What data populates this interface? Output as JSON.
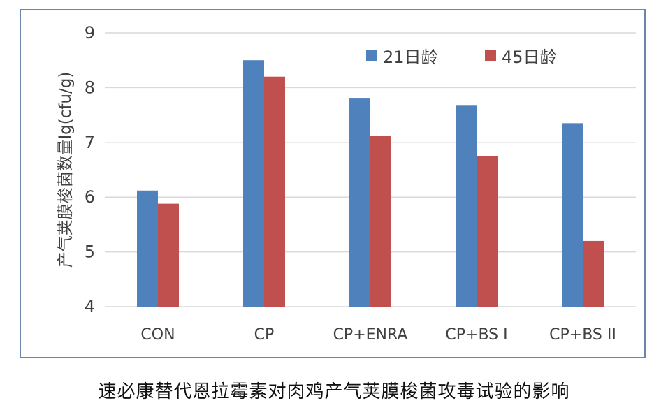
{
  "caption": "速必康替代恩拉霉素对肉鸡产气荚膜梭菌攻毒试验的影响",
  "chart_data": {
    "type": "bar",
    "title": "",
    "xlabel": "",
    "ylabel": "产气荚膜梭菌数量lg(cfu/g)",
    "categories": [
      "CON",
      "CP",
      "CP+ENRA",
      "CP+BS I",
      "CP+BS II"
    ],
    "series": [
      {
        "name": "21日龄",
        "color": "#4f81bd",
        "values": [
          6.12,
          8.5,
          7.8,
          7.67,
          7.35
        ]
      },
      {
        "name": "45日龄",
        "color": "#c0504d",
        "values": [
          5.88,
          8.2,
          7.12,
          6.75,
          5.2
        ]
      }
    ],
    "ylim": [
      4,
      9
    ],
    "yticks": [
      "4",
      "5",
      "6",
      "7",
      "8",
      "9"
    ],
    "grid": true,
    "legend_position": "top-right"
  }
}
